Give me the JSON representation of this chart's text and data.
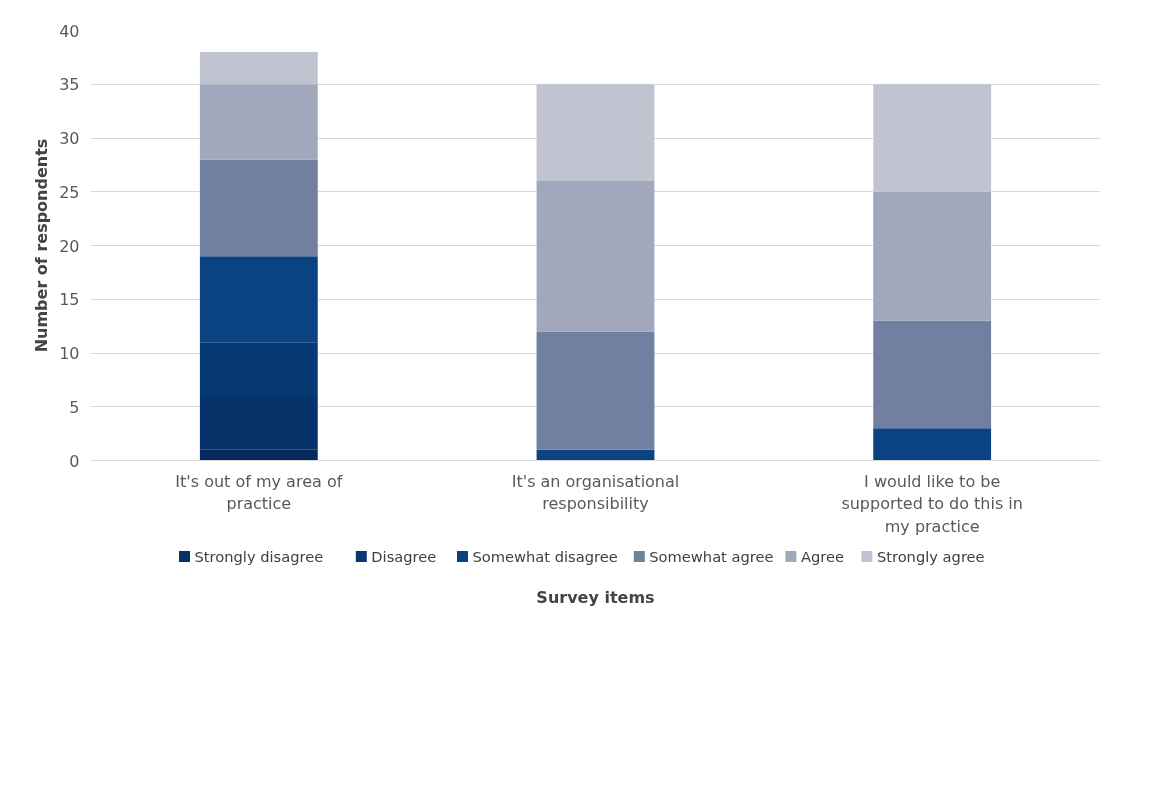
{
  "chart_data": {
    "type": "bar",
    "stacked": true,
    "xlabel": "Survey items",
    "ylabel": "Number of respondents",
    "categories": [
      "It's out of my area of practice",
      "It's an organisational responsibility",
      "I would like to be supported to do this in my practice"
    ],
    "series": [
      {
        "color": "#062a5c",
        "values": [
          1,
          0,
          0
        ]
      },
      {
        "name": "Strongly disagree",
        "color": "#08326a",
        "values": [
          5,
          0,
          0
        ]
      },
      {
        "name": "Disagree",
        "color": "#073a74",
        "values": [
          5,
          0,
          0
        ]
      },
      {
        "name": "Somewhat disagree",
        "color": "#0a4282",
        "values": [
          8,
          1,
          3
        ]
      },
      {
        "name": "Somewhat agree",
        "color": "#717fa0",
        "values": [
          9,
          11,
          10
        ]
      },
      {
        "name": "Agree",
        "color": "#a2a8bb",
        "values": [
          7,
          14,
          12
        ]
      },
      {
        "name": "Strongly agree",
        "color": "#c0c4d1",
        "values": [
          3,
          9,
          10
        ]
      }
    ],
    "ylim": [
      0,
      40
    ],
    "yticks": [
      0,
      5,
      10,
      15,
      20,
      25,
      30,
      35,
      40
    ],
    "grid": "y",
    "legend": "bottom"
  }
}
